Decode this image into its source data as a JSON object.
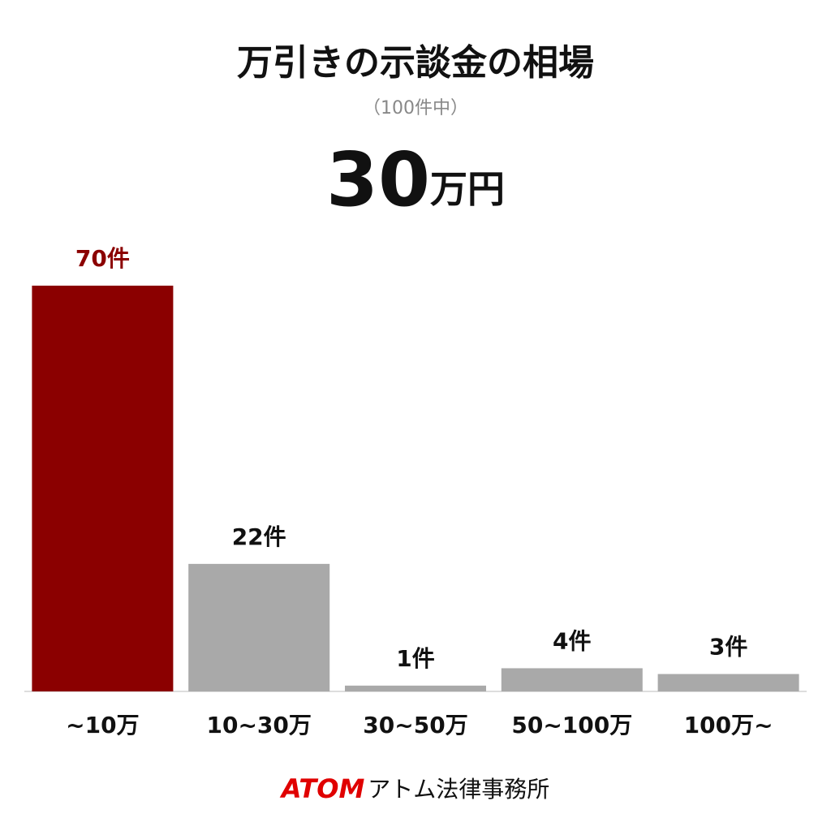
{
  "chart_data": {
    "type": "bar",
    "title": "万引きの示談金の相場",
    "subtitle": "（100件中）",
    "headline": {
      "number": "30",
      "unit": "万円"
    },
    "categories": [
      "~10万",
      "10~30万",
      "30~50万",
      "50~100万",
      "100万~"
    ],
    "values": [
      70,
      22,
      1,
      4,
      3
    ],
    "value_labels": [
      "70件",
      "22件",
      "1件",
      "4件",
      "3件"
    ],
    "colors": [
      "#8b0000",
      "#a9a9a9",
      "#a9a9a9",
      "#a9a9a9",
      "#a9a9a9"
    ],
    "ylim": [
      0,
      70
    ],
    "footer": {
      "brand": "ATOM",
      "name": "アトム法律事務所"
    }
  }
}
